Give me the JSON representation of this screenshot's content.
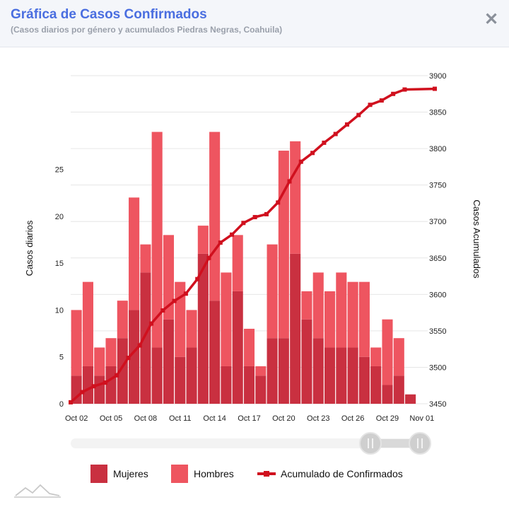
{
  "header": {
    "title": "Gráfica de Casos Confirmados",
    "subtitle": "(Casos diarios por género y acumulados Piedras Negras, Coahuila)",
    "close_icon": "close-icon"
  },
  "colors": {
    "mujeres": "#c93040",
    "hombres": "#ee5560",
    "acumulado": "#d0101e",
    "grid": "#e6e6e6"
  },
  "chart_data": {
    "type": "bar",
    "stacked": true,
    "categories": [
      "Oct 02",
      "Oct 03",
      "Oct 04",
      "Oct 05",
      "Oct 06",
      "Oct 07",
      "Oct 08",
      "Oct 09",
      "Oct 10",
      "Oct 11",
      "Oct 12",
      "Oct 13",
      "Oct 14",
      "Oct 15",
      "Oct 16",
      "Oct 17",
      "Oct 18",
      "Oct 19",
      "Oct 20",
      "Oct 21",
      "Oct 22",
      "Oct 23",
      "Oct 24",
      "Oct 25",
      "Oct 26",
      "Oct 27",
      "Oct 28",
      "Oct 29",
      "Oct 30",
      "Oct 31",
      "Nov 01"
    ],
    "x_tick_labels": [
      "Oct 02",
      "Oct 05",
      "Oct 08",
      "Oct 11",
      "Oct 14",
      "Oct 17",
      "Oct 20",
      "Oct 23",
      "Oct 26",
      "Oct 29",
      "Nov 01"
    ],
    "series": [
      {
        "name": "Mujeres",
        "axis": "left",
        "values": [
          3,
          4,
          3,
          4,
          7,
          10,
          14,
          6,
          9,
          5,
          6,
          16,
          11,
          4,
          12,
          4,
          3,
          7,
          7,
          16,
          9,
          7,
          6,
          6,
          6,
          5,
          4,
          2,
          3,
          1,
          0
        ]
      },
      {
        "name": "Hombres",
        "axis": "left",
        "values": [
          7,
          9,
          3,
          3,
          4,
          12,
          3,
          23,
          9,
          8,
          4,
          3,
          18,
          10,
          6,
          4,
          1,
          10,
          20,
          12,
          3,
          7,
          6,
          8,
          7,
          8,
          2,
          7,
          4,
          0,
          0
        ]
      },
      {
        "name": "Acumulado de Confirmados",
        "type": "line",
        "axis": "right",
        "values": [
          3452,
          3466,
          3474,
          3479,
          3489,
          3513,
          3530,
          3560,
          3578,
          3591,
          3601,
          3621,
          3650,
          3671,
          3682,
          3698,
          3706,
          3710,
          3726,
          3755,
          3782,
          3794,
          3808,
          3820,
          3833,
          3846,
          3860,
          3866,
          3875,
          3881,
          3882
        ]
      }
    ],
    "y_left": {
      "label": "Casos diarios",
      "ticks": [
        "0",
        "5",
        "10",
        "15",
        "20",
        "25"
      ],
      "min": 0,
      "max": 35
    },
    "y_right": {
      "label": "Casos Acumulados",
      "ticks": [
        "3450",
        "3500",
        "3550",
        "3600",
        "3650",
        "3700",
        "3750",
        "3800",
        "3850",
        "3900"
      ],
      "min": 3450,
      "max": 3900
    },
    "legend": [
      "Mujeres",
      "Hombres",
      "Acumulado de Confirmados"
    ],
    "legend_position": "bottom",
    "grid": true
  }
}
